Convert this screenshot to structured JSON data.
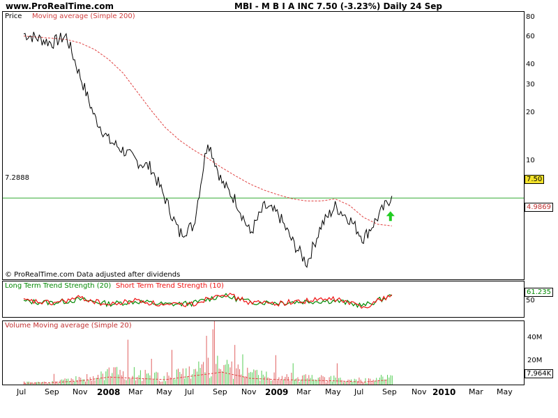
{
  "header": {
    "site": "www.ProRealTime.com",
    "ticker": "MBI - M B I A INC    7.50 (-3.23%)    Daily  24 Sep"
  },
  "price_panel": {
    "legend_price": "Price",
    "legend_ma": "Moving average (Simple 200)",
    "hline_label": "7.2888",
    "hline_value": 7.2888,
    "footer": "© ProRealTime.com Data adjusted after dividends",
    "last_price_tag": "7.50",
    "ma_tag": "4.9869",
    "y_ticks": [
      "80",
      "60",
      "40",
      "30",
      "20",
      "10"
    ],
    "arrow": "up-arrow-icon"
  },
  "trend_panel": {
    "legend_long": "Long Term Trend Strength (20)",
    "legend_short": "Short Term Trend Strength (10)",
    "y_tick": "50",
    "value_tag": "61.235"
  },
  "volume_panel": {
    "legend": "Volume Moving average (Simple 20)",
    "y_ticks": [
      "40M",
      "20M"
    ],
    "value_tag": "7,964K"
  },
  "x_axis": {
    "labels": [
      "Jul",
      "Sep",
      "Nov",
      "2008",
      "Mar",
      "May",
      "Jul",
      "Sep",
      "Nov",
      "2009",
      "Mar",
      "May",
      "Jul",
      "Sep",
      "Nov",
      "2010",
      "Mar",
      "May"
    ]
  },
  "colors": {
    "price": "#000000",
    "ma": "#e04040",
    "hline": "#33aa33",
    "trend_long": "#008800",
    "trend_short": "#ee1111",
    "vol_up": "#55cc55",
    "vol_down": "#e06060",
    "arrow": "#22cc22"
  },
  "chart_data": [
    {
      "type": "line",
      "title": "MBI - M B I A INC",
      "scale": "log",
      "ylim": [
        2.7,
        85
      ],
      "x": [
        "2007-07",
        "2007-08",
        "2007-09",
        "2007-10",
        "2007-11",
        "2007-12",
        "2008-01",
        "2008-02",
        "2008-03",
        "2008-04",
        "2008-05",
        "2008-06",
        "2008-07",
        "2008-08",
        "2008-09",
        "2008-10",
        "2008-11",
        "2008-12",
        "2009-01",
        "2009-02",
        "2009-03",
        "2009-04",
        "2009-05",
        "2009-06",
        "2009-07",
        "2009-08",
        "2009-09"
      ],
      "series": [
        {
          "name": "Price",
          "values": [
            68,
            64,
            60,
            66,
            38,
            22,
            16,
            14,
            12,
            11,
            7.2,
            4.5,
            5.0,
            16,
            9.0,
            7.0,
            4.5,
            6.5,
            5.8,
            4.0,
            3.0,
            5.0,
            6.5,
            5.5,
            4.2,
            5.6,
            7.5
          ]
        },
        {
          "name": "Moving average (Simple 200)",
          "values": [
            66,
            65,
            64,
            63,
            60,
            55,
            48,
            40,
            31,
            24,
            19,
            16,
            14,
            12.5,
            11,
            9.8,
            8.8,
            8.1,
            7.6,
            7.2,
            7.0,
            7.0,
            7.2,
            6.6,
            5.6,
            5.1,
            4.9869
          ]
        }
      ]
    },
    {
      "type": "line",
      "title": "Long Term Trend Strength (20) / Short Term Trend Strength (10)",
      "ylim": [
        30,
        80
      ],
      "x": [
        "2007-07",
        "2007-09",
        "2007-11",
        "2008-01",
        "2008-03",
        "2008-05",
        "2008-07",
        "2008-09",
        "2008-11",
        "2009-01",
        "2009-03",
        "2009-05",
        "2009-07",
        "2009-09"
      ],
      "series": [
        {
          "name": "Long Term Trend Strength (20)",
          "values": [
            52,
            50,
            55,
            48,
            52,
            47,
            49,
            62,
            51,
            50,
            52,
            53,
            45,
            61.235
          ]
        },
        {
          "name": "Short Term Trend Strength (10)",
          "values": [
            53,
            49,
            58,
            46,
            54,
            45,
            48,
            66,
            50,
            49,
            53,
            56,
            43,
            63
          ]
        }
      ]
    },
    {
      "type": "bar",
      "title": "Volume Moving average (Simple 20)",
      "ylim": [
        0,
        50
      ],
      "unit": "M",
      "x": [
        "2007-07",
        "2007-09",
        "2007-11",
        "2008-01",
        "2008-03",
        "2008-05",
        "2008-07",
        "2008-09",
        "2008-11",
        "2009-01",
        "2009-03",
        "2009-05",
        "2009-07",
        "2009-09"
      ],
      "values": [
        2,
        3,
        6,
        12,
        10,
        8,
        14,
        20,
        10,
        8,
        7,
        6,
        4,
        7.964
      ]
    }
  ]
}
